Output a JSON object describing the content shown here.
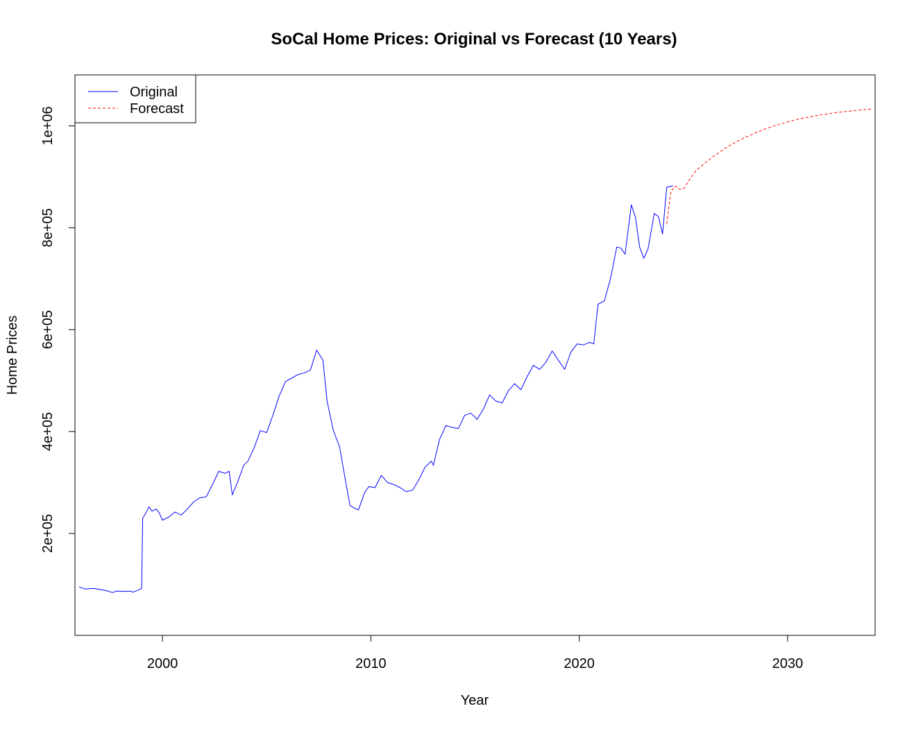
{
  "chart_data": {
    "type": "line",
    "title": "SoCal Home Prices: Original vs Forecast (10 Years)",
    "xlabel": "Year",
    "ylabel": "Home Prices",
    "xlim": [
      1995.8,
      2034.2
    ],
    "ylim": [
      0,
      1100000
    ],
    "x_ticks": [
      2000,
      2010,
      2020,
      2030
    ],
    "x_tick_labels": [
      "2000",
      "2010",
      "2020",
      "2030"
    ],
    "y_ticks": [
      200000,
      400000,
      600000,
      800000,
      1000000
    ],
    "y_tick_labels": [
      "2e+05",
      "4e+05",
      "6e+05",
      "8e+05",
      "1e+06"
    ],
    "grid": false,
    "legend_position": "top-left",
    "series": [
      {
        "name": "Original",
        "color": "#0000ff",
        "style": "solid",
        "points": [
          [
            1996.0,
            95000
          ],
          [
            1996.3,
            91000
          ],
          [
            1996.7,
            92000
          ],
          [
            1997.0,
            90000
          ],
          [
            1997.3,
            88000
          ],
          [
            1997.6,
            84000
          ],
          [
            1997.8,
            87000
          ],
          [
            1998.1,
            86000
          ],
          [
            1998.4,
            87000
          ],
          [
            1998.6,
            85000
          ],
          [
            1998.9,
            90000
          ],
          [
            1999.0,
            92000
          ],
          [
            1999.05,
            230000
          ],
          [
            1999.2,
            240000
          ],
          [
            1999.35,
            252000
          ],
          [
            1999.5,
            244000
          ],
          [
            1999.7,
            248000
          ],
          [
            1999.85,
            240000
          ],
          [
            2000.0,
            226000
          ],
          [
            2000.3,
            232000
          ],
          [
            2000.6,
            242000
          ],
          [
            2000.9,
            236000
          ],
          [
            2001.2,
            248000
          ],
          [
            2001.5,
            262000
          ],
          [
            2001.8,
            270000
          ],
          [
            2002.1,
            272000
          ],
          [
            2002.4,
            296000
          ],
          [
            2002.7,
            322000
          ],
          [
            2003.0,
            318000
          ],
          [
            2003.2,
            322000
          ],
          [
            2003.35,
            276000
          ],
          [
            2003.6,
            300000
          ],
          [
            2003.9,
            334000
          ],
          [
            2004.1,
            342000
          ],
          [
            2004.4,
            368000
          ],
          [
            2004.7,
            402000
          ],
          [
            2005.0,
            398000
          ],
          [
            2005.3,
            432000
          ],
          [
            2005.6,
            470000
          ],
          [
            2005.9,
            498000
          ],
          [
            2006.2,
            505000
          ],
          [
            2006.5,
            512000
          ],
          [
            2006.8,
            515000
          ],
          [
            2007.1,
            521000
          ],
          [
            2007.4,
            560000
          ],
          [
            2007.7,
            540000
          ],
          [
            2007.9,
            460000
          ],
          [
            2008.2,
            402000
          ],
          [
            2008.5,
            370000
          ],
          [
            2008.8,
            300000
          ],
          [
            2009.0,
            255000
          ],
          [
            2009.2,
            250000
          ],
          [
            2009.4,
            246000
          ],
          [
            2009.7,
            280000
          ],
          [
            2009.9,
            292000
          ],
          [
            2010.2,
            290000
          ],
          [
            2010.5,
            314000
          ],
          [
            2010.8,
            300000
          ],
          [
            2011.1,
            296000
          ],
          [
            2011.4,
            290000
          ],
          [
            2011.7,
            282000
          ],
          [
            2012.0,
            285000
          ],
          [
            2012.3,
            305000
          ],
          [
            2012.6,
            330000
          ],
          [
            2012.9,
            342000
          ],
          [
            2013.0,
            334000
          ],
          [
            2013.3,
            385000
          ],
          [
            2013.6,
            412000
          ],
          [
            2013.9,
            408000
          ],
          [
            2014.2,
            406000
          ],
          [
            2014.5,
            432000
          ],
          [
            2014.8,
            436000
          ],
          [
            2015.1,
            424000
          ],
          [
            2015.4,
            444000
          ],
          [
            2015.7,
            472000
          ],
          [
            2016.0,
            460000
          ],
          [
            2016.3,
            456000
          ],
          [
            2016.6,
            480000
          ],
          [
            2016.9,
            494000
          ],
          [
            2017.2,
            482000
          ],
          [
            2017.5,
            508000
          ],
          [
            2017.8,
            530000
          ],
          [
            2018.1,
            522000
          ],
          [
            2018.4,
            536000
          ],
          [
            2018.7,
            558000
          ],
          [
            2019.0,
            540000
          ],
          [
            2019.3,
            522000
          ],
          [
            2019.6,
            556000
          ],
          [
            2019.9,
            572000
          ],
          [
            2020.2,
            570000
          ],
          [
            2020.5,
            575000
          ],
          [
            2020.7,
            572000
          ],
          [
            2020.9,
            650000
          ],
          [
            2021.2,
            656000
          ],
          [
            2021.5,
            700000
          ],
          [
            2021.8,
            762000
          ],
          [
            2022.0,
            760000
          ],
          [
            2022.2,
            748000
          ],
          [
            2022.5,
            845000
          ],
          [
            2022.7,
            820000
          ],
          [
            2022.9,
            762000
          ],
          [
            2023.1,
            740000
          ],
          [
            2023.3,
            758000
          ],
          [
            2023.6,
            828000
          ],
          [
            2023.8,
            822000
          ],
          [
            2024.0,
            788000
          ],
          [
            2024.2,
            880000
          ],
          [
            2024.5,
            882000
          ]
        ]
      },
      {
        "name": "Forecast",
        "color": "#ff0000",
        "style": "dashed",
        "points": [
          [
            2024.2,
            808000
          ],
          [
            2024.4,
            870000
          ],
          [
            2024.6,
            882000
          ],
          [
            2024.8,
            876000
          ],
          [
            2025.0,
            876000
          ],
          [
            2025.3,
            895000
          ],
          [
            2025.6,
            912000
          ],
          [
            2026.0,
            926000
          ],
          [
            2026.5,
            942000
          ],
          [
            2027.0,
            956000
          ],
          [
            2027.5,
            968000
          ],
          [
            2028.0,
            978000
          ],
          [
            2028.5,
            987000
          ],
          [
            2029.0,
            995000
          ],
          [
            2029.5,
            1002000
          ],
          [
            2030.0,
            1008000
          ],
          [
            2030.5,
            1013000
          ],
          [
            2031.0,
            1017000
          ],
          [
            2031.5,
            1021000
          ],
          [
            2032.0,
            1024000
          ],
          [
            2032.5,
            1027000
          ],
          [
            2033.0,
            1029000
          ],
          [
            2033.5,
            1031000
          ],
          [
            2034.0,
            1033000
          ]
        ]
      }
    ]
  }
}
